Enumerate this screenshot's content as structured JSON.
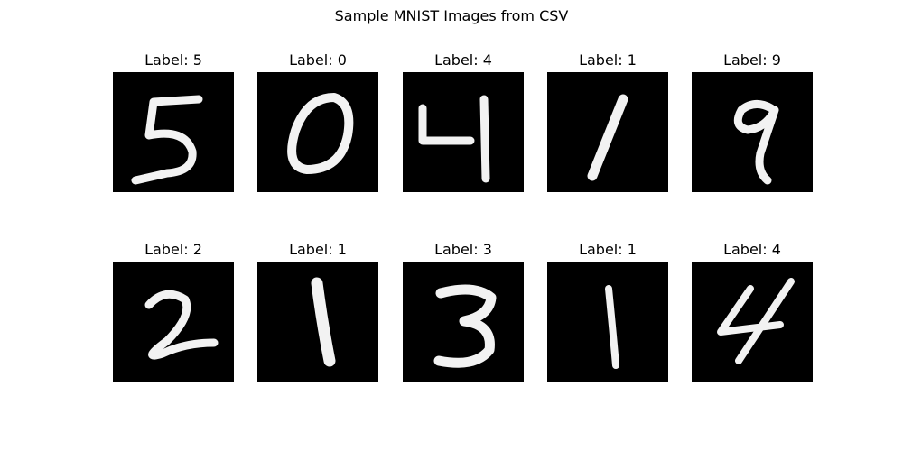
{
  "title": "Sample MNIST Images from CSV",
  "samples": [
    {
      "label": "Label: 5",
      "digit": "5"
    },
    {
      "label": "Label: 0",
      "digit": "0"
    },
    {
      "label": "Label: 4",
      "digit": "4"
    },
    {
      "label": "Label: 1",
      "digit": "1"
    },
    {
      "label": "Label: 9",
      "digit": "9"
    },
    {
      "label": "Label: 2",
      "digit": "2"
    },
    {
      "label": "Label: 1",
      "digit": "1"
    },
    {
      "label": "Label: 3",
      "digit": "3"
    },
    {
      "label": "Label: 1",
      "digit": "1"
    },
    {
      "label": "Label: 4",
      "digit": "4"
    }
  ]
}
